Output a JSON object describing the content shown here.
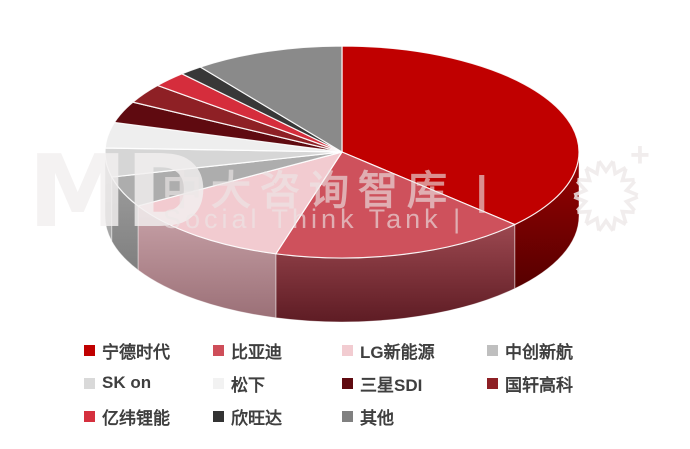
{
  "chart_data": {
    "type": "pie",
    "style": "3d",
    "title": "",
    "legend_position": "bottom",
    "start_angle_deg": 0,
    "direction": "clockwise",
    "units": "%",
    "series": [
      {
        "label": "宁德时代",
        "value": 37.0,
        "color": "#C00000",
        "legend_color": "#C00000",
        "side": [
          "#9A0202",
          "#560000"
        ]
      },
      {
        "label": "比亚迪",
        "value": 17.5,
        "color": "#CE515C",
        "legend_color": "#CE4E59",
        "side": [
          "#9C4850",
          "#5E1C24"
        ]
      },
      {
        "label": "LG新能源",
        "value": 12.0,
        "color": "#F2CBD0",
        "legend_color": "#F2CCD1",
        "side": [
          "#C9A3A9",
          "#9B7077"
        ]
      },
      {
        "label": "中创新航",
        "value": 4.7,
        "color": "#ADADAD",
        "legend_color": "#BFBFBF",
        "side": [
          "#9C9C9C",
          "#7F7F7F"
        ]
      },
      {
        "label": "SK on",
        "value": 4.4,
        "color": "#D6D6D6",
        "legend_color": "#D9D9D9",
        "side": [
          "#BDBDBD",
          "#A3A3A3"
        ]
      },
      {
        "label": "松下",
        "value": 3.9,
        "color": "#EEEEEE",
        "legend_color": "#F2F2F2",
        "side": [
          "#D5D5D5",
          "#BDBDBD"
        ]
      },
      {
        "label": "三星SDI",
        "value": 3.3,
        "color": "#5F0A10",
        "legend_color": "#5F0A10",
        "side": [
          "#4A070C",
          "#350508"
        ]
      },
      {
        "label": "国轩高科",
        "value": 3.0,
        "color": "#8E2025",
        "legend_color": "#8E2025",
        "side": [
          "#73161B",
          "#541012"
        ]
      },
      {
        "label": "亿纬锂能",
        "value": 2.4,
        "color": "#D52D3C",
        "legend_color": "#D5303E",
        "side": [
          "#A81F2C",
          "#7E1722"
        ]
      },
      {
        "label": "欣旺达",
        "value": 1.6,
        "color": "#383838",
        "legend_color": "#333333",
        "side": [
          "#2B2B2B",
          "#1F1F1F"
        ]
      },
      {
        "label": "其他",
        "value": 10.2,
        "color": "#8A8A8A",
        "legend_color": "#808080",
        "side": [
          "#6E6E6E",
          "#5A5A5A"
        ]
      }
    ]
  },
  "watermark": {
    "letters": "MD",
    "line1": "中大咨询智库 |",
    "line2": "Social Think Tank |",
    "plus_icon": "+",
    "color": "#ECE7E7"
  }
}
